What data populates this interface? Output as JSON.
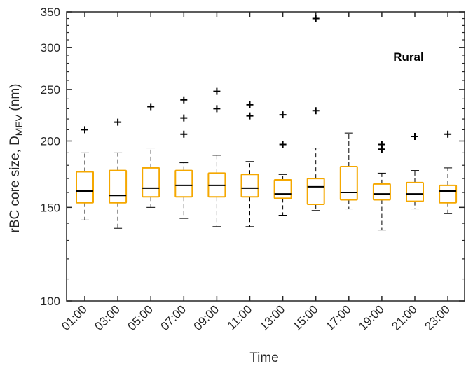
{
  "chart_data": {
    "type": "box",
    "title": "",
    "annotation": "Rural",
    "xlabel": "Time",
    "ylabel_main": "rBC core size, D",
    "ylabel_sub": "MEV",
    "ylabel_unit": " (nm)",
    "yscale": "log",
    "ylim": [
      100,
      350
    ],
    "yticks": [
      100,
      150,
      200,
      250,
      300,
      350
    ],
    "ytick_labels": [
      "100",
      "150",
      "200",
      "250",
      "300",
      "350"
    ],
    "categories": [
      "01:00",
      "03:00",
      "05:00",
      "07:00",
      "09:00",
      "11:00",
      "13:00",
      "15:00",
      "17:00",
      "19:00",
      "21:00",
      "23:00"
    ],
    "box_color": "#F5A800",
    "boxes": [
      {
        "whisker_low": 142,
        "q1": 153,
        "median": 161,
        "q3": 175,
        "whisker_high": 190,
        "outliers": [
          210
        ]
      },
      {
        "whisker_low": 137,
        "q1": 153,
        "median": 158,
        "q3": 176,
        "whisker_high": 190,
        "outliers": [
          217
        ]
      },
      {
        "whisker_low": 150,
        "q1": 157,
        "median": 163,
        "q3": 178,
        "whisker_high": 194,
        "outliers": [
          232
        ]
      },
      {
        "whisker_low": 143,
        "q1": 157,
        "median": 165,
        "q3": 176,
        "whisker_high": 182,
        "outliers": [
          206,
          221,
          239
        ]
      },
      {
        "whisker_low": 138,
        "q1": 157,
        "median": 165,
        "q3": 174,
        "whisker_high": 188,
        "outliers": [
          230,
          248
        ]
      },
      {
        "whisker_low": 138,
        "q1": 157,
        "median": 163,
        "q3": 173,
        "whisker_high": 183,
        "outliers": [
          223,
          234
        ]
      },
      {
        "whisker_low": 145,
        "q1": 156,
        "median": 159,
        "q3": 169,
        "whisker_high": 173,
        "outliers": [
          197,
          224
        ]
      },
      {
        "whisker_low": 148,
        "q1": 152,
        "median": 164,
        "q3": 170,
        "whisker_high": 194,
        "outliers": [
          228,
          340
        ]
      },
      {
        "whisker_low": 149,
        "q1": 155,
        "median": 160,
        "q3": 179,
        "whisker_high": 207,
        "outliers": []
      },
      {
        "whisker_low": 136,
        "q1": 155,
        "median": 159,
        "q3": 166,
        "whisker_high": 174,
        "outliers": [
          193,
          197
        ]
      },
      {
        "whisker_low": 149,
        "q1": 154,
        "median": 159,
        "q3": 167,
        "whisker_high": 176,
        "outliers": [
          204
        ]
      },
      {
        "whisker_low": 146,
        "q1": 153,
        "median": 161,
        "q3": 165,
        "whisker_high": 178,
        "outliers": [
          206
        ]
      }
    ]
  }
}
